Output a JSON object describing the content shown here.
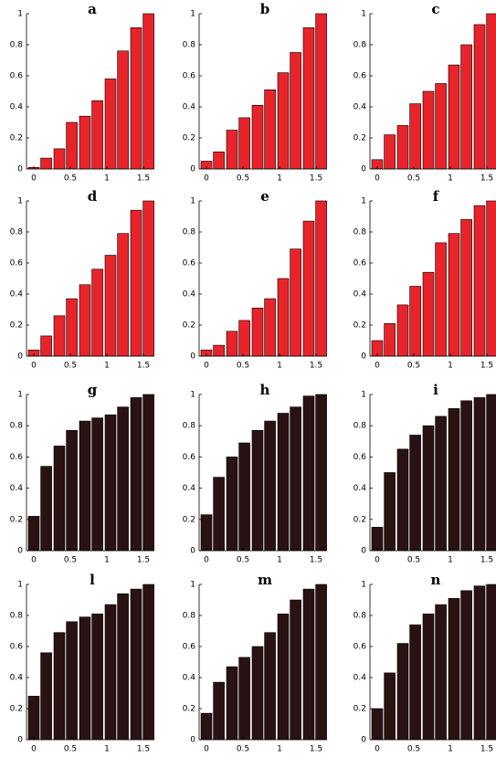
{
  "chart_data": [
    {
      "type": "bar",
      "title": "a",
      "x": [
        0,
        0.17,
        0.35,
        0.52,
        0.7,
        0.87,
        1.05,
        1.22,
        1.4,
        1.57
      ],
      "values": [
        0.01,
        0.07,
        0.13,
        0.3,
        0.34,
        0.44,
        0.58,
        0.76,
        0.91,
        1.0
      ],
      "color": "#e8242a",
      "xlim": [
        -0.1,
        1.65
      ],
      "ylim": [
        0,
        1
      ],
      "xticks": [
        0,
        0.5,
        1,
        1.5
      ],
      "yticks": [
        0,
        0.2,
        0.4,
        0.6,
        0.8,
        1
      ]
    },
    {
      "type": "bar",
      "title": "b",
      "x": [
        0,
        0.17,
        0.35,
        0.52,
        0.7,
        0.87,
        1.05,
        1.22,
        1.4,
        1.57
      ],
      "values": [
        0.05,
        0.11,
        0.25,
        0.33,
        0.41,
        0.51,
        0.62,
        0.75,
        0.91,
        1.0
      ],
      "color": "#e8242a",
      "xlim": [
        -0.1,
        1.65
      ],
      "ylim": [
        0,
        1
      ],
      "xticks": [
        0,
        0.5,
        1,
        1.5
      ],
      "yticks": [
        0,
        0.2,
        0.4,
        0.6,
        0.8,
        1
      ]
    },
    {
      "type": "bar",
      "title": "c",
      "x": [
        0,
        0.17,
        0.35,
        0.52,
        0.7,
        0.87,
        1.05,
        1.22,
        1.4,
        1.57
      ],
      "values": [
        0.06,
        0.22,
        0.28,
        0.42,
        0.5,
        0.55,
        0.67,
        0.8,
        0.93,
        1.0
      ],
      "color": "#e8242a",
      "xlim": [
        -0.1,
        1.65
      ],
      "ylim": [
        0,
        1
      ],
      "xticks": [
        0,
        0.5,
        1,
        1.5
      ],
      "yticks": [
        0,
        0.2,
        0.4,
        0.6,
        0.8,
        1
      ]
    },
    {
      "type": "bar",
      "title": "d",
      "x": [
        0,
        0.17,
        0.35,
        0.52,
        0.7,
        0.87,
        1.05,
        1.22,
        1.4,
        1.57
      ],
      "values": [
        0.04,
        0.13,
        0.26,
        0.37,
        0.46,
        0.56,
        0.65,
        0.79,
        0.94,
        1.0
      ],
      "color": "#e8242a",
      "xlim": [
        -0.1,
        1.65
      ],
      "ylim": [
        0,
        1
      ],
      "xticks": [
        0,
        0.5,
        1,
        1.5
      ],
      "yticks": [
        0,
        0.2,
        0.4,
        0.6,
        0.8,
        1
      ]
    },
    {
      "type": "bar",
      "title": "e",
      "x": [
        0,
        0.17,
        0.35,
        0.52,
        0.7,
        0.87,
        1.05,
        1.22,
        1.4,
        1.57
      ],
      "values": [
        0.04,
        0.07,
        0.16,
        0.23,
        0.31,
        0.37,
        0.5,
        0.69,
        0.87,
        1.0
      ],
      "color": "#e8242a",
      "xlim": [
        -0.1,
        1.65
      ],
      "ylim": [
        0,
        1
      ],
      "xticks": [
        0,
        0.5,
        1,
        1.5
      ],
      "yticks": [
        0,
        0.2,
        0.4,
        0.6,
        0.8,
        1
      ]
    },
    {
      "type": "bar",
      "title": "f",
      "x": [
        0,
        0.17,
        0.35,
        0.52,
        0.7,
        0.87,
        1.05,
        1.22,
        1.4,
        1.57
      ],
      "values": [
        0.1,
        0.21,
        0.33,
        0.45,
        0.54,
        0.73,
        0.79,
        0.88,
        0.97,
        1.0
      ],
      "color": "#e8242a",
      "xlim": [
        -0.1,
        1.65
      ],
      "ylim": [
        0,
        1
      ],
      "xticks": [
        0,
        0.5,
        1,
        1.5
      ],
      "yticks": [
        0,
        0.2,
        0.4,
        0.6,
        0.8,
        1
      ]
    },
    {
      "type": "bar",
      "title": "g",
      "x": [
        0,
        0.17,
        0.35,
        0.52,
        0.7,
        0.87,
        1.05,
        1.22,
        1.4,
        1.57
      ],
      "values": [
        0.22,
        0.54,
        0.67,
        0.77,
        0.83,
        0.85,
        0.87,
        0.92,
        0.98,
        1.0
      ],
      "color": "#2a1212",
      "xlim": [
        -0.1,
        1.65
      ],
      "ylim": [
        0,
        1
      ],
      "xticks": [
        0,
        0.5,
        1,
        1.5
      ],
      "yticks": [
        0,
        0.2,
        0.4,
        0.6,
        0.8,
        1
      ]
    },
    {
      "type": "bar",
      "title": "h",
      "x": [
        0,
        0.17,
        0.35,
        0.52,
        0.7,
        0.87,
        1.05,
        1.22,
        1.4,
        1.57
      ],
      "values": [
        0.23,
        0.47,
        0.6,
        0.69,
        0.77,
        0.83,
        0.88,
        0.92,
        0.99,
        1.0
      ],
      "color": "#2a1212",
      "xlim": [
        -0.1,
        1.65
      ],
      "ylim": [
        0,
        1
      ],
      "xticks": [
        0,
        0.5,
        1,
        1.5
      ],
      "yticks": [
        0,
        0.2,
        0.4,
        0.6,
        0.8,
        1
      ]
    },
    {
      "type": "bar",
      "title": "i",
      "x": [
        0,
        0.17,
        0.35,
        0.52,
        0.7,
        0.87,
        1.05,
        1.22,
        1.4,
        1.57
      ],
      "values": [
        0.15,
        0.5,
        0.65,
        0.74,
        0.8,
        0.86,
        0.91,
        0.96,
        0.98,
        1.0
      ],
      "color": "#2a1212",
      "xlim": [
        -0.1,
        1.65
      ],
      "ylim": [
        0,
        1
      ],
      "xticks": [
        0,
        0.5,
        1,
        1.5
      ],
      "yticks": [
        0,
        0.2,
        0.4,
        0.6,
        0.8,
        1
      ]
    },
    {
      "type": "bar",
      "title": "l",
      "x": [
        0,
        0.17,
        0.35,
        0.52,
        0.7,
        0.87,
        1.05,
        1.22,
        1.4,
        1.57
      ],
      "values": [
        0.28,
        0.56,
        0.69,
        0.76,
        0.79,
        0.81,
        0.87,
        0.94,
        0.97,
        1.0
      ],
      "color": "#2a1212",
      "xlim": [
        -0.1,
        1.65
      ],
      "ylim": [
        0,
        1
      ],
      "xticks": [
        0,
        0.5,
        1,
        1.5
      ],
      "yticks": [
        0,
        0.2,
        0.4,
        0.6,
        0.8,
        1
      ]
    },
    {
      "type": "bar",
      "title": "m",
      "x": [
        0,
        0.17,
        0.35,
        0.52,
        0.7,
        0.87,
        1.05,
        1.22,
        1.4,
        1.57
      ],
      "values": [
        0.17,
        0.37,
        0.47,
        0.53,
        0.6,
        0.69,
        0.81,
        0.9,
        0.97,
        1.0
      ],
      "color": "#2a1212",
      "xlim": [
        -0.1,
        1.65
      ],
      "ylim": [
        0,
        1
      ],
      "xticks": [
        0,
        0.5,
        1,
        1.5
      ],
      "yticks": [
        0,
        0.2,
        0.4,
        0.6,
        0.8,
        1
      ]
    },
    {
      "type": "bar",
      "title": "n",
      "x": [
        0,
        0.17,
        0.35,
        0.52,
        0.7,
        0.87,
        1.05,
        1.22,
        1.4,
        1.57
      ],
      "values": [
        0.2,
        0.43,
        0.62,
        0.74,
        0.81,
        0.87,
        0.91,
        0.96,
        0.99,
        1.0
      ],
      "color": "#2a1212",
      "xlim": [
        -0.1,
        1.65
      ],
      "ylim": [
        0,
        1
      ],
      "xticks": [
        0,
        0.5,
        1,
        1.5
      ],
      "yticks": [
        0,
        0.2,
        0.4,
        0.6,
        0.8,
        1
      ]
    }
  ]
}
